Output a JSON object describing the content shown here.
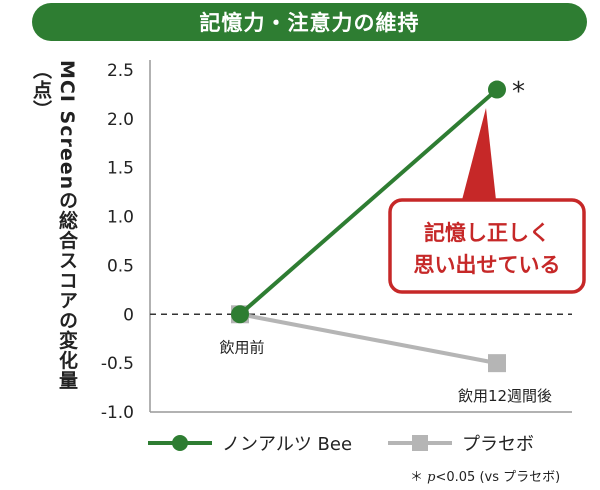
{
  "header": {
    "title": "記憶力・注意力の維持"
  },
  "colors": {
    "banner": "#2e7d32",
    "series_active": "#2e7d32",
    "series_placebo": "#b5b5b5",
    "callout": "#c62828"
  },
  "chart_data": {
    "type": "line",
    "title": "記憶力・注意力の維持",
    "ylabel": "MCI Screenの総合スコアの変化量（点）",
    "xlabel": "",
    "ylim": [
      -1.0,
      2.5
    ],
    "yticks": [
      "2.5",
      "2.0",
      "1.5",
      "1.0",
      "0.5",
      "0",
      "-0.5",
      "-1.0"
    ],
    "categories": [
      "飲用前",
      "飲用12週間後"
    ],
    "series": [
      {
        "name": "ノンアルツ Bee",
        "values": [
          0,
          2.3
        ],
        "marker": "circle",
        "color": "#2e7d32"
      },
      {
        "name": "プラセボ",
        "values": [
          0,
          -0.5
        ],
        "marker": "square",
        "color": "#b5b5b5"
      }
    ],
    "significance_mark": "*",
    "callout": [
      "記憶し正しく",
      "思い出せている"
    ],
    "footnote": {
      "star": "＊",
      "p": "p",
      "rest": "<0.05 (vs プラセボ)"
    },
    "legend_position": "bottom"
  }
}
